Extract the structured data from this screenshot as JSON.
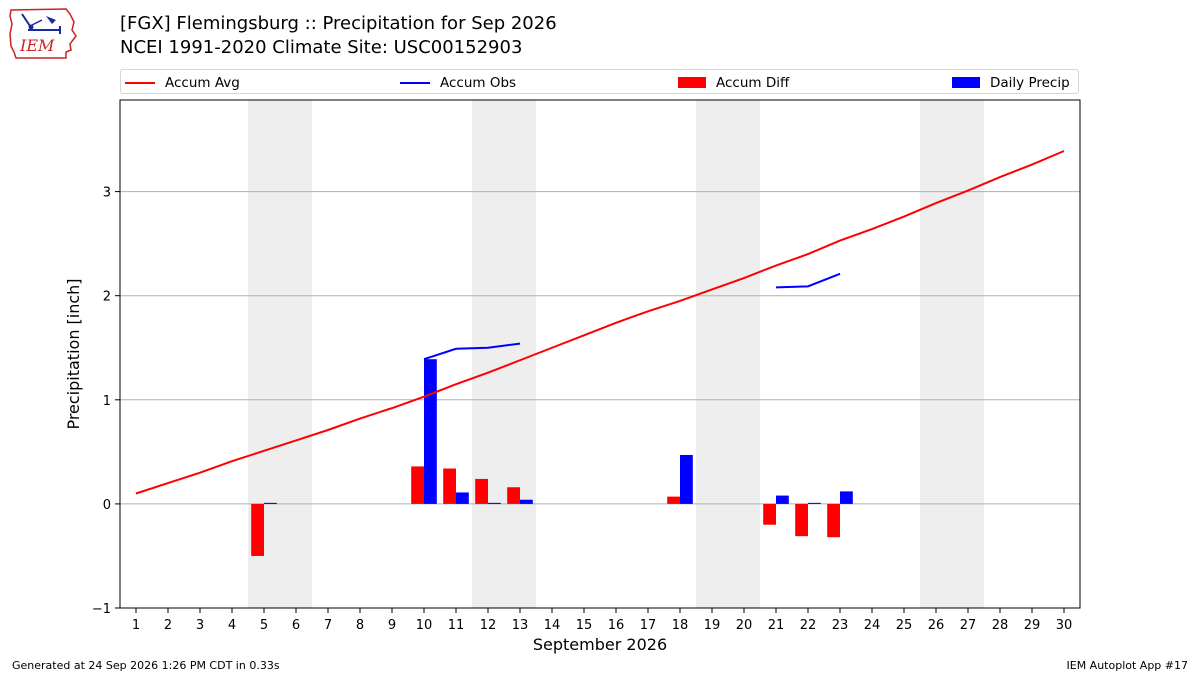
{
  "header": {
    "title_line1": "[FGX] Flemingsburg :: Precipitation for Sep 2026",
    "title_line2": "NCEI 1991-2020 Climate Site: USC00152903",
    "logo_text": "IEM"
  },
  "legend": {
    "placement": "top, above plot",
    "items": [
      {
        "label": "Accum Avg",
        "kind": "line",
        "color": "#ff0000"
      },
      {
        "label": "Accum Obs",
        "kind": "line",
        "color": "#0000ff"
      },
      {
        "label": "Accum Diff",
        "kind": "patch",
        "color": "#ff0000"
      },
      {
        "label": "Daily Precip",
        "kind": "patch",
        "color": "#0000ff"
      }
    ]
  },
  "footer": {
    "left": "Generated at 24 Sep 2026 1:26 PM CDT in 0.33s",
    "right": "IEM Autoplot App #17"
  },
  "chart_data": {
    "type": "bar",
    "title": "[FGX] Flemingsburg :: Precipitation for Sep 2026",
    "subtitle": "NCEI 1991-2020 Climate Site: USC00152903",
    "xlabel": "September 2026",
    "ylabel": "Precipitation [inch]",
    "xlim": [
      0.5,
      30.5
    ],
    "ylim": [
      -1,
      3.88
    ],
    "xticks": [
      1,
      2,
      3,
      4,
      5,
      6,
      7,
      8,
      9,
      10,
      11,
      12,
      13,
      14,
      15,
      16,
      17,
      18,
      19,
      20,
      21,
      22,
      23,
      24,
      25,
      26,
      27,
      28,
      29,
      30
    ],
    "yticks": [
      -1,
      0,
      1,
      2,
      3
    ],
    "ytick_labels": [
      "−1",
      "0",
      "1",
      "2",
      "3"
    ],
    "grid": "horizontal",
    "weekend_shading": [
      [
        4.5,
        6.5
      ],
      [
        11.5,
        13.5
      ],
      [
        18.5,
        20.5
      ],
      [
        25.5,
        27.5
      ]
    ],
    "shade_color": "#eeeeee",
    "accum_avg": {
      "name": "Accum Avg",
      "color": "#ff0000",
      "x": [
        1,
        2,
        3,
        4,
        5,
        6,
        7,
        8,
        9,
        10,
        11,
        12,
        13,
        14,
        15,
        16,
        17,
        18,
        19,
        20,
        21,
        22,
        23,
        24,
        25,
        26,
        27,
        28,
        29,
        30
      ],
      "y": [
        0.1,
        0.2,
        0.3,
        0.41,
        0.51,
        0.61,
        0.71,
        0.82,
        0.92,
        1.03,
        1.15,
        1.26,
        1.38,
        1.5,
        1.62,
        1.74,
        1.85,
        1.95,
        2.06,
        2.17,
        2.29,
        2.4,
        2.53,
        2.64,
        2.76,
        2.89,
        3.01,
        3.14,
        3.26,
        3.39
      ]
    },
    "accum_obs": {
      "name": "Accum Obs",
      "color": "#0000ff",
      "segments": [
        {
          "x": [
            10,
            11,
            12,
            13
          ],
          "y": [
            1.39,
            1.49,
            1.5,
            1.54
          ]
        },
        {
          "x": [
            21,
            22,
            23
          ],
          "y": [
            2.08,
            2.09,
            2.21
          ]
        }
      ]
    },
    "accum_diff": {
      "name": "Accum Diff",
      "color": "#ff0000",
      "x": [
        5,
        10,
        11,
        12,
        13,
        18,
        21,
        22,
        23
      ],
      "values": [
        -0.5,
        0.36,
        0.34,
        0.24,
        0.16,
        0.07,
        -0.2,
        -0.31,
        -0.32
      ]
    },
    "daily_precip": {
      "name": "Daily Precip",
      "color": "#0000ff",
      "x": [
        5,
        10,
        11,
        12,
        13,
        18,
        21,
        22,
        23
      ],
      "values": [
        0.01,
        1.39,
        0.11,
        0.01,
        0.04,
        0.47,
        0.08,
        0.01,
        0.12
      ]
    }
  }
}
